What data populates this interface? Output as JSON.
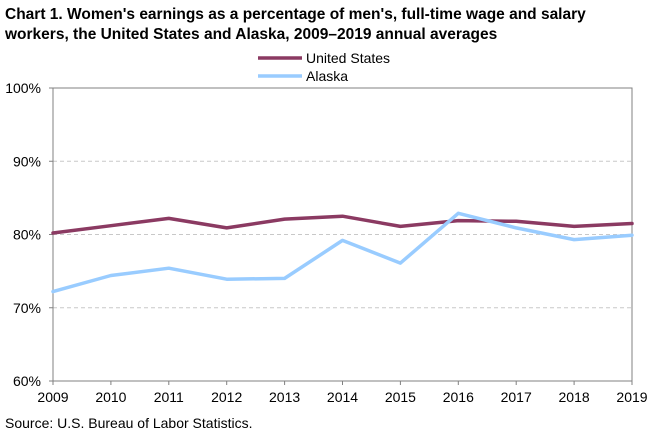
{
  "title_line1": "Chart 1. Women's earnings as a percentage of men's, full-time wage and salary",
  "title_line2": "workers, the United States and Alaska, 2009–2019 annual averages",
  "source": "Source:  U.S. Bureau of Labor Statistics.",
  "chart_data": {
    "type": "line",
    "x": [
      "2009",
      "2010",
      "2011",
      "2012",
      "2013",
      "2014",
      "2015",
      "2016",
      "2017",
      "2018",
      "2019"
    ],
    "series": [
      {
        "name": "United States",
        "color": "#8b3a62",
        "values": [
          80.2,
          81.2,
          82.2,
          80.9,
          82.1,
          82.5,
          81.1,
          81.9,
          81.8,
          81.1,
          81.5
        ]
      },
      {
        "name": "Alaska",
        "color": "#99ccff",
        "values": [
          72.2,
          74.4,
          75.4,
          73.9,
          74.0,
          79.2,
          76.1,
          82.9,
          80.9,
          79.3,
          79.9
        ]
      }
    ],
    "y_ticks": [
      "60%",
      "70%",
      "80%",
      "90%",
      "100%"
    ],
    "ylim": [
      60,
      100
    ],
    "grid": "horizontal dashed",
    "legend_position": "top-center"
  }
}
